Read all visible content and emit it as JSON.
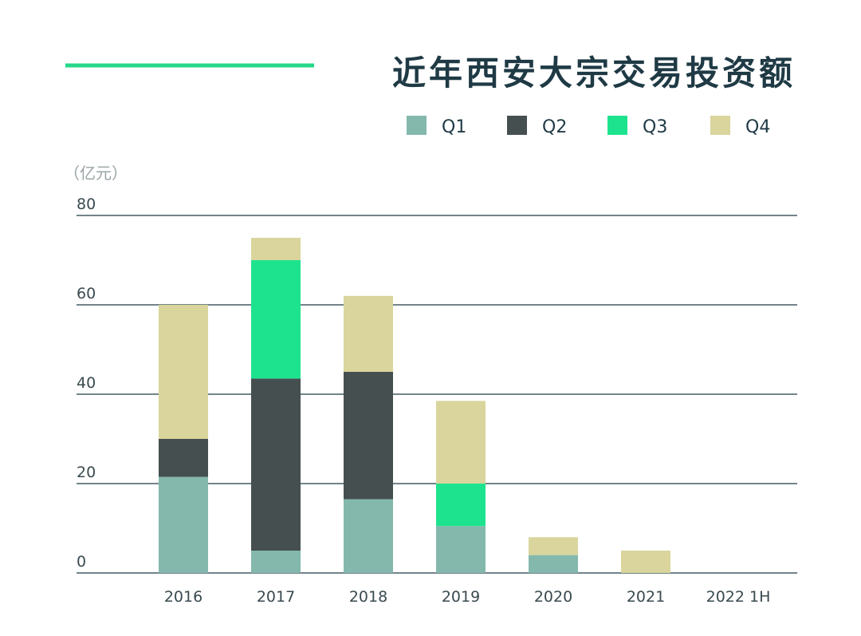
{
  "chart_data": {
    "type": "bar",
    "stacked": true,
    "title": "近年西安大宗交易投资额",
    "unit_label": "（亿元）",
    "categories": [
      "2016",
      "2017",
      "2018",
      "2019",
      "2020",
      "2021",
      "2022 1H"
    ],
    "series": [
      {
        "name": "Q1",
        "color": "#84b8ad",
        "values": [
          21.5,
          5,
          16.5,
          10.5,
          4,
          0,
          0
        ]
      },
      {
        "name": "Q2",
        "color": "#454f50",
        "values": [
          8.5,
          38.5,
          28.5,
          0,
          0,
          0,
          0
        ]
      },
      {
        "name": "Q3",
        "color": "#1ee38e",
        "values": [
          0,
          26.5,
          0,
          9.5,
          0,
          0,
          0
        ]
      },
      {
        "name": "Q4",
        "color": "#d9d59c",
        "values": [
          30,
          5,
          17,
          18.5,
          4,
          5,
          0
        ]
      }
    ],
    "ylim": [
      0,
      80
    ],
    "yticks": [
      "0",
      "20",
      "40",
      "60",
      "80"
    ],
    "grid": true,
    "legend_position": "top-right",
    "colors": {
      "accent_line": "#25d88a",
      "title": "#1f3a45",
      "gridline": "#1f3a45",
      "axis_text": "#3a4a50"
    }
  }
}
